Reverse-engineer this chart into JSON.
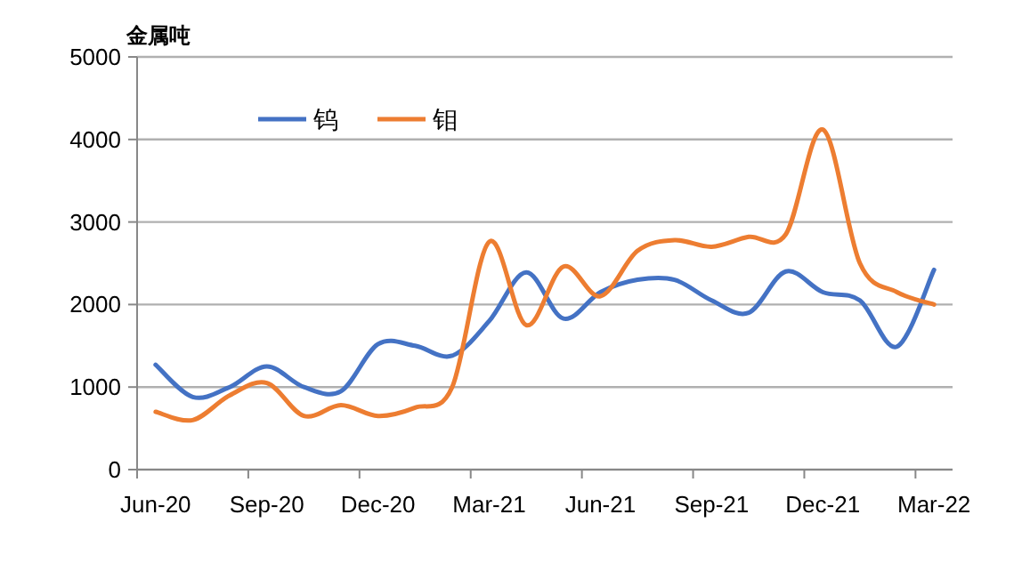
{
  "chart_data": {
    "type": "line",
    "ylabel": "金属吨",
    "categories": [
      "Jun-20",
      null,
      null,
      "Sep-20",
      null,
      null,
      "Dec-20",
      null,
      null,
      "Mar-21",
      null,
      null,
      "Jun-21",
      null,
      null,
      "Sep-21",
      null,
      null,
      "Dec-21",
      null,
      null,
      "Mar-22"
    ],
    "series": [
      {
        "name": "钨",
        "color": "#4472c4",
        "values": [
          1270,
          880,
          1000,
          1250,
          1000,
          950,
          1520,
          1500,
          1380,
          1800,
          2390,
          1830,
          2150,
          2300,
          2300,
          2050,
          1900,
          2400,
          2150,
          2050,
          1490,
          2420
        ]
      },
      {
        "name": "钼",
        "color": "#ed7d31",
        "values": [
          700,
          600,
          900,
          1050,
          650,
          780,
          650,
          750,
          1000,
          2760,
          1750,
          2460,
          2100,
          2650,
          2780,
          2700,
          2820,
          2850,
          4120,
          2500,
          2150,
          2000
        ]
      }
    ],
    "ylim": [
      0,
      5000
    ],
    "yticks": [
      0,
      1000,
      2000,
      3000,
      4000,
      5000
    ],
    "grid": "y",
    "legend": "top left"
  }
}
